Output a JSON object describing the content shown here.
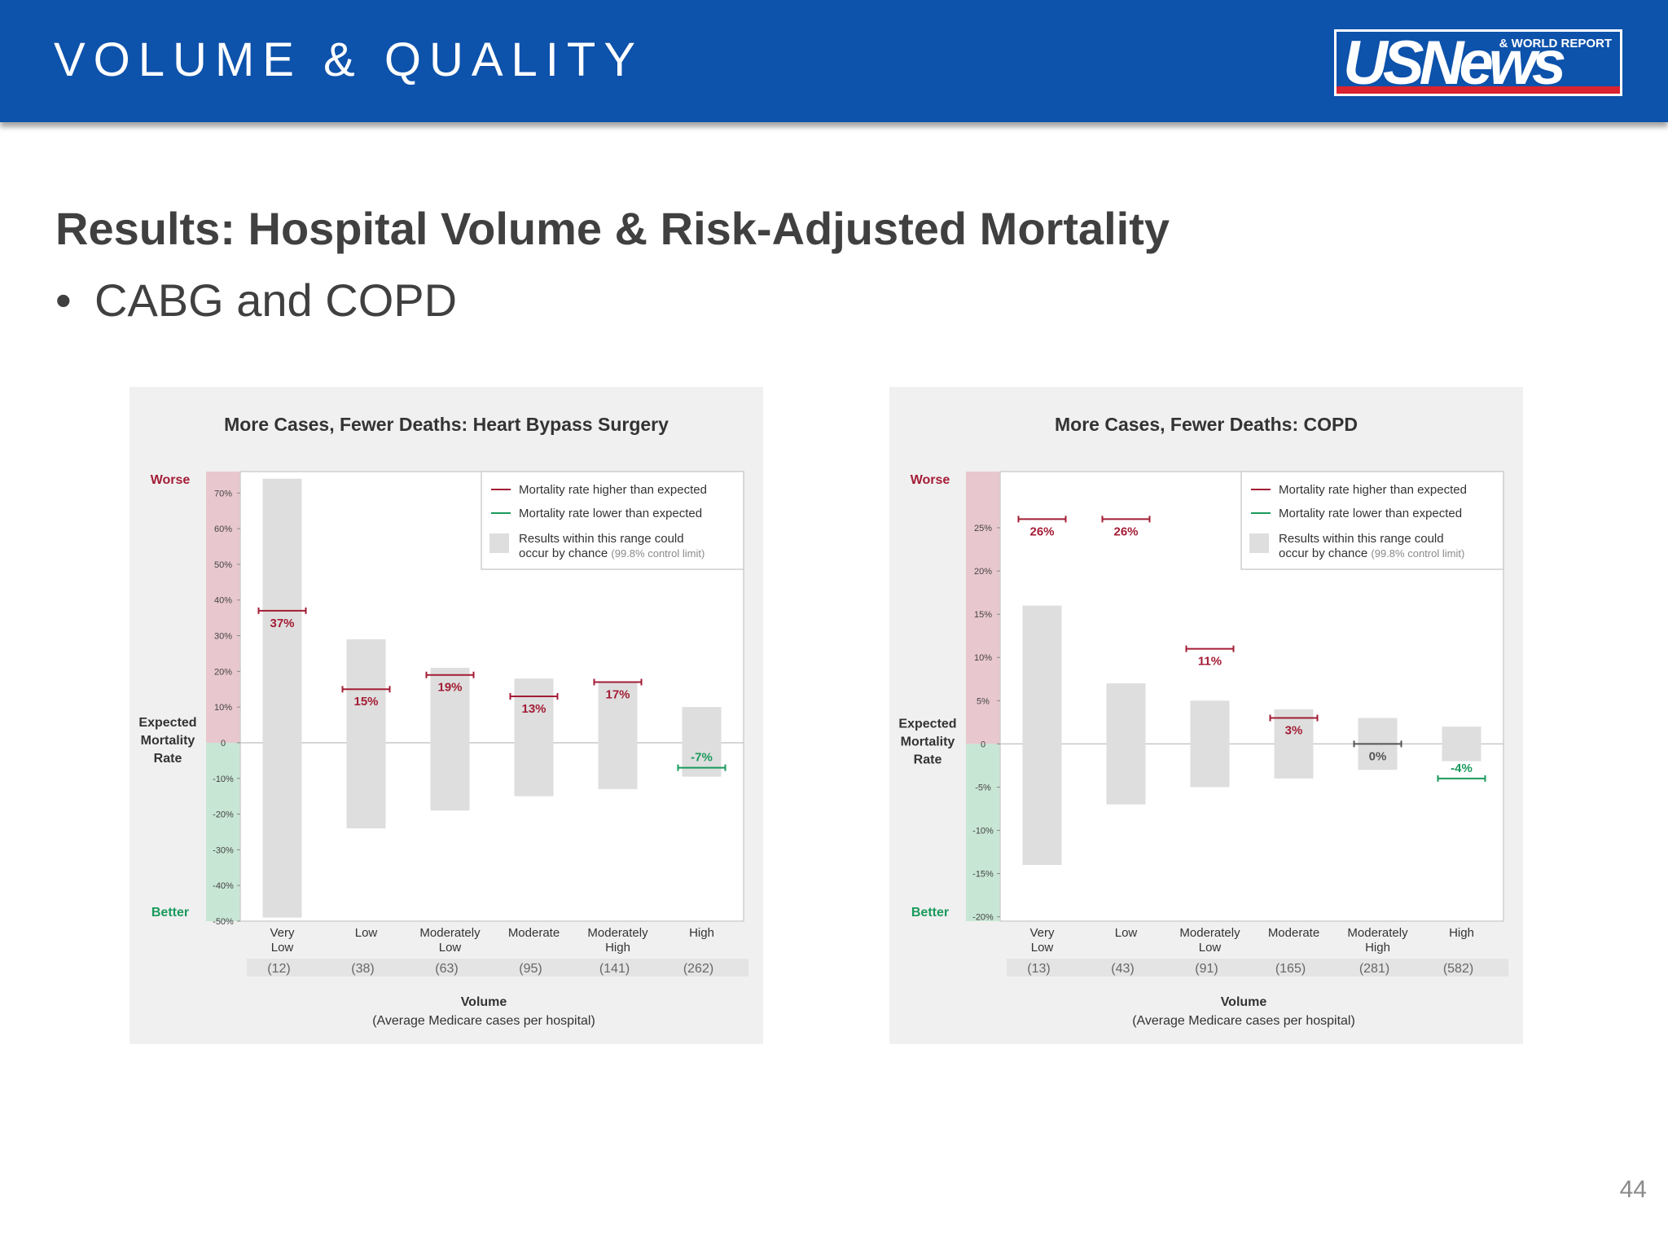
{
  "header": {
    "title": "VOLUME & QUALITY",
    "logo_main": "USNews",
    "logo_sub": "& WORLD REPORT"
  },
  "slide": {
    "title": "Results: Hospital Volume & Risk-Adjusted Mortality",
    "bullet_marker": "•",
    "bullet": "CABG and COPD",
    "page_number": "44"
  },
  "colors": {
    "header_bg": "#0d52ab",
    "worse_red": "#a31d35",
    "better_green": "#1a9a5c",
    "range_gray": "#dedede",
    "worse_band": "#e8c7cf",
    "better_band": "#c8e6d4"
  },
  "chart_data": [
    {
      "type": "bar",
      "title": "More Cases, Fewer Deaths: Heart Bypass Surgery",
      "ylabel": "Expected Mortality Rate",
      "ylabel_lines": [
        "Expected",
        "Mortality",
        "Rate"
      ],
      "top_label": "Worse",
      "bottom_label": "Better",
      "xlabel": "Volume",
      "xlabel_sub": "(Average Medicare cases per hospital)",
      "ylim": [
        -50,
        76
      ],
      "yticks": [
        {
          "value": 70,
          "label": "70%"
        },
        {
          "value": 60,
          "label": "60%"
        },
        {
          "value": 50,
          "label": "50%"
        },
        {
          "value": 40,
          "label": "40%"
        },
        {
          "value": 30,
          "label": "30%"
        },
        {
          "value": 20,
          "label": "20%"
        },
        {
          "value": 10,
          "label": "10%"
        },
        {
          "value": 0,
          "label": "0"
        },
        {
          "value": -10,
          "label": "-10%"
        },
        {
          "value": -20,
          "label": "-20%"
        },
        {
          "value": -30,
          "label": "-30%"
        },
        {
          "value": -40,
          "label": "-40%"
        },
        {
          "value": -50,
          "label": "-50%"
        }
      ],
      "legend": {
        "position": "top-right",
        "higher": "Mortality rate higher than expected",
        "lower": "Mortality rate lower than expected",
        "range_line1": "Results within this range could",
        "range_line2": "occur by chance",
        "range_note": "(99.8% control limit)"
      },
      "categories": [
        {
          "lines": [
            "Very",
            "Low"
          ],
          "count": "(12)",
          "range": [
            -49,
            74
          ],
          "value": 37,
          "label": "37%",
          "direction": "higher"
        },
        {
          "lines": [
            "Low"
          ],
          "count": "(38)",
          "range": [
            -24,
            29
          ],
          "value": 15,
          "label": "15%",
          "direction": "higher"
        },
        {
          "lines": [
            "Moderately",
            "Low"
          ],
          "count": "(63)",
          "range": [
            -19,
            21
          ],
          "value": 19,
          "label": "19%",
          "direction": "higher"
        },
        {
          "lines": [
            "Moderate"
          ],
          "count": "(95)",
          "range": [
            -15,
            18
          ],
          "value": 13,
          "label": "13%",
          "direction": "higher"
        },
        {
          "lines": [
            "Moderately",
            "High"
          ],
          "count": "(141)",
          "range": [
            -13,
            17
          ],
          "value": 17,
          "label": "17%",
          "direction": "higher"
        },
        {
          "lines": [
            "High"
          ],
          "count": "(262)",
          "range": [
            -9.5,
            10
          ],
          "value": -7,
          "label": "-7%",
          "direction": "lower"
        }
      ]
    },
    {
      "type": "bar",
      "title": "More Cases, Fewer Deaths: COPD",
      "ylabel": "Expected Mortality Rate",
      "ylabel_lines": [
        "Expected",
        "Mortality",
        "Rate"
      ],
      "top_label": "Worse",
      "bottom_label": "Better",
      "xlabel": "Volume",
      "xlabel_sub": "(Average Medicare cases per hospital)",
      "ylim": [
        -20.5,
        31.5
      ],
      "yticks": [
        {
          "value": 25,
          "label": "25%"
        },
        {
          "value": 20,
          "label": "20%"
        },
        {
          "value": 15,
          "label": "15%"
        },
        {
          "value": 10,
          "label": "10%"
        },
        {
          "value": 5,
          "label": "5%"
        },
        {
          "value": 0,
          "label": "0"
        },
        {
          "value": -5,
          "label": "-5%"
        },
        {
          "value": -10,
          "label": "-10%"
        },
        {
          "value": -15,
          "label": "-15%"
        },
        {
          "value": -20,
          "label": "-20%"
        }
      ],
      "legend": {
        "position": "top-right",
        "higher": "Mortality rate higher than expected",
        "lower": "Mortality rate lower than expected",
        "range_line1": "Results within this range could",
        "range_line2": "occur by chance",
        "range_note": "(99.8% control limit)"
      },
      "categories": [
        {
          "lines": [
            "Very",
            "Low"
          ],
          "count": "(13)",
          "range": [
            -14,
            16
          ],
          "value": 26,
          "label": "26%",
          "direction": "higher"
        },
        {
          "lines": [
            "Low"
          ],
          "count": "(43)",
          "range": [
            -7,
            7
          ],
          "value": 26,
          "label": "26%",
          "direction": "higher"
        },
        {
          "lines": [
            "Moderately",
            "Low"
          ],
          "count": "(91)",
          "range": [
            -5,
            5
          ],
          "value": 11,
          "label": "11%",
          "direction": "higher"
        },
        {
          "lines": [
            "Moderate"
          ],
          "count": "(165)",
          "range": [
            -4,
            4
          ],
          "value": 3,
          "label": "3%",
          "direction": "higher"
        },
        {
          "lines": [
            "Moderately",
            "High"
          ],
          "count": "(281)",
          "range": [
            -3,
            3
          ],
          "value": 0,
          "label": "0%",
          "direction": "neutral"
        },
        {
          "lines": [
            "High"
          ],
          "count": "(582)",
          "range": [
            -2,
            2
          ],
          "value": -4,
          "label": "-4%",
          "direction": "lower"
        }
      ]
    }
  ]
}
